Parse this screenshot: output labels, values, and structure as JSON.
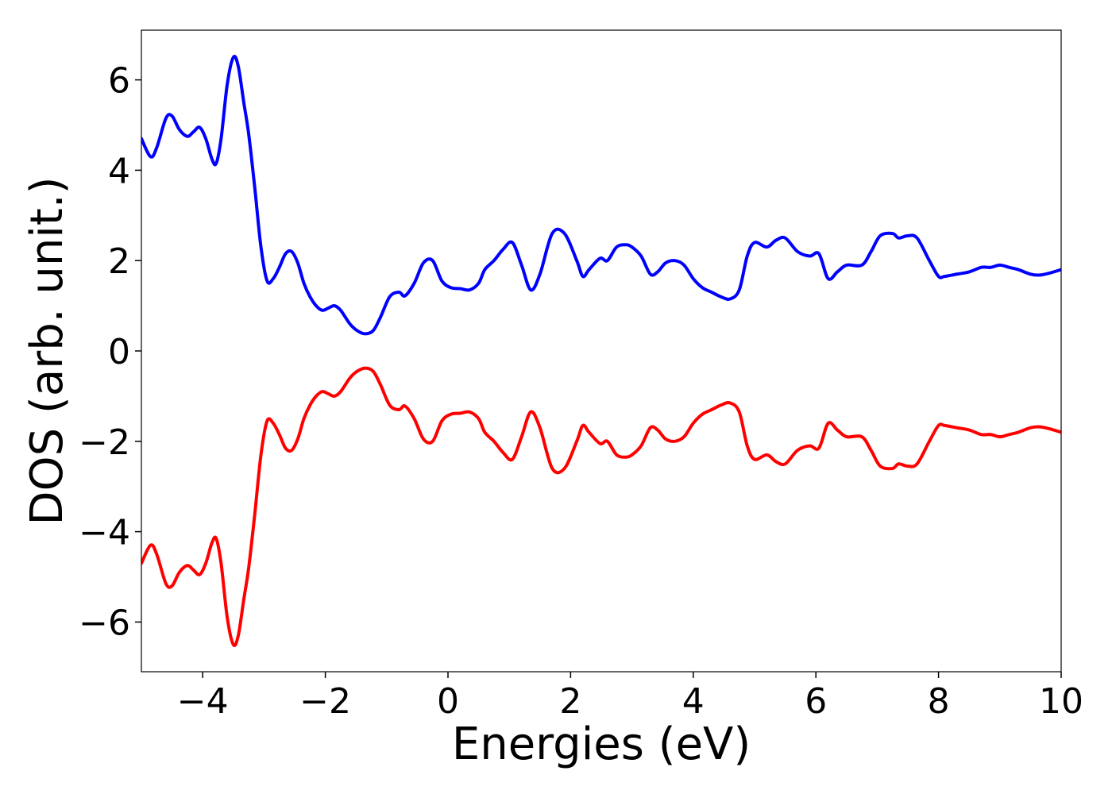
{
  "chart_data": {
    "type": "line",
    "title": "",
    "xlabel": "Energies (eV)",
    "ylabel": "DOS (arb. unit.)",
    "xlim": [
      -5,
      10
    ],
    "ylim": [
      -7.1,
      7.1
    ],
    "xticks": [
      -4,
      -2,
      0,
      2,
      4,
      6,
      8,
      10
    ],
    "xtick_labels": [
      "−4",
      "−2",
      "0",
      "2",
      "4",
      "6",
      "8",
      "10"
    ],
    "yticks": [
      -6,
      -4,
      -2,
      0,
      2,
      4,
      6
    ],
    "ytick_labels": [
      "−6",
      "−4",
      "−2",
      "0",
      "2",
      "4",
      "6"
    ],
    "grid": false,
    "series": [
      {
        "color": "#0000ff",
        "x": [
          -5.0,
          -4.85,
          -4.75,
          -4.6,
          -4.5,
          -4.38,
          -4.25,
          -4.15,
          -4.05,
          -3.95,
          -3.85,
          -3.78,
          -3.7,
          -3.6,
          -3.5,
          -3.42,
          -3.33,
          -3.25,
          -3.15,
          -3.05,
          -2.95,
          -2.85,
          -2.75,
          -2.65,
          -2.55,
          -2.45,
          -2.35,
          -2.25,
          -2.15,
          -2.05,
          -1.95,
          -1.85,
          -1.75,
          -1.6,
          -1.48,
          -1.35,
          -1.22,
          -1.1,
          -0.95,
          -0.8,
          -0.7,
          -0.55,
          -0.4,
          -0.25,
          -0.1,
          0.05,
          0.2,
          0.35,
          0.5,
          0.6,
          0.75,
          0.9,
          1.05,
          1.2,
          1.35,
          1.5,
          1.7,
          1.9,
          2.1,
          2.2,
          2.3,
          2.48,
          2.6,
          2.75,
          2.9,
          3.0,
          3.15,
          3.3,
          3.42,
          3.55,
          3.7,
          3.85,
          4.0,
          4.15,
          4.3,
          4.45,
          4.6,
          4.75,
          4.88,
          5.0,
          5.2,
          5.35,
          5.5,
          5.7,
          5.9,
          6.05,
          6.2,
          6.35,
          6.5,
          6.75,
          6.9,
          7.05,
          7.25,
          7.35,
          7.5,
          7.65,
          7.85,
          8.0,
          8.1,
          8.3,
          8.5,
          8.7,
          8.85,
          9.0,
          9.15,
          9.3,
          9.5,
          9.65,
          9.8,
          10.0
        ],
        "y": [
          4.7,
          4.3,
          4.5,
          5.15,
          5.2,
          4.9,
          4.75,
          4.85,
          4.95,
          4.7,
          4.25,
          4.15,
          4.7,
          5.9,
          6.5,
          6.3,
          5.5,
          4.8,
          3.6,
          2.3,
          1.55,
          1.6,
          1.85,
          2.15,
          2.2,
          1.95,
          1.5,
          1.2,
          1.0,
          0.9,
          0.95,
          1.0,
          0.9,
          0.6,
          0.45,
          0.38,
          0.45,
          0.75,
          1.2,
          1.3,
          1.22,
          1.5,
          1.95,
          2.0,
          1.55,
          1.4,
          1.38,
          1.35,
          1.5,
          1.8,
          2.0,
          2.25,
          2.4,
          1.9,
          1.35,
          1.7,
          2.6,
          2.6,
          2.0,
          1.65,
          1.8,
          2.05,
          2.0,
          2.3,
          2.35,
          2.3,
          2.1,
          1.7,
          1.75,
          1.95,
          2.0,
          1.9,
          1.6,
          1.4,
          1.3,
          1.2,
          1.15,
          1.35,
          2.1,
          2.4,
          2.3,
          2.45,
          2.5,
          2.2,
          2.1,
          2.15,
          1.6,
          1.75,
          1.9,
          1.9,
          2.2,
          2.55,
          2.6,
          2.5,
          2.55,
          2.5,
          2.0,
          1.65,
          1.65,
          1.7,
          1.75,
          1.85,
          1.85,
          1.9,
          1.85,
          1.8,
          1.7,
          1.68,
          1.72,
          1.8
        ]
      },
      {
        "color": "#ff0000",
        "x": [
          -5.0,
          -4.85,
          -4.75,
          -4.6,
          -4.5,
          -4.38,
          -4.25,
          -4.15,
          -4.05,
          -3.95,
          -3.85,
          -3.78,
          -3.7,
          -3.6,
          -3.5,
          -3.42,
          -3.33,
          -3.25,
          -3.15,
          -3.05,
          -2.95,
          -2.85,
          -2.75,
          -2.65,
          -2.55,
          -2.45,
          -2.35,
          -2.25,
          -2.15,
          -2.05,
          -1.95,
          -1.85,
          -1.75,
          -1.6,
          -1.48,
          -1.35,
          -1.22,
          -1.1,
          -0.95,
          -0.8,
          -0.7,
          -0.55,
          -0.4,
          -0.25,
          -0.1,
          0.05,
          0.2,
          0.35,
          0.5,
          0.6,
          0.75,
          0.9,
          1.05,
          1.2,
          1.35,
          1.5,
          1.7,
          1.9,
          2.1,
          2.2,
          2.3,
          2.48,
          2.6,
          2.75,
          2.9,
          3.0,
          3.15,
          3.3,
          3.42,
          3.55,
          3.7,
          3.85,
          4.0,
          4.15,
          4.3,
          4.45,
          4.6,
          4.75,
          4.88,
          5.0,
          5.2,
          5.35,
          5.5,
          5.7,
          5.9,
          6.05,
          6.2,
          6.35,
          6.5,
          6.75,
          6.9,
          7.05,
          7.25,
          7.35,
          7.5,
          7.65,
          7.85,
          8.0,
          8.1,
          8.3,
          8.5,
          8.7,
          8.85,
          9.0,
          9.15,
          9.3,
          9.5,
          9.65,
          9.8,
          10.0
        ],
        "y": [
          -4.7,
          -4.3,
          -4.5,
          -5.15,
          -5.2,
          -4.9,
          -4.75,
          -4.85,
          -4.95,
          -4.7,
          -4.25,
          -4.15,
          -4.7,
          -5.9,
          -6.5,
          -6.3,
          -5.5,
          -4.8,
          -3.6,
          -2.3,
          -1.55,
          -1.6,
          -1.85,
          -2.15,
          -2.2,
          -1.95,
          -1.5,
          -1.2,
          -1.0,
          -0.9,
          -0.95,
          -1.0,
          -0.9,
          -0.6,
          -0.45,
          -0.38,
          -0.45,
          -0.75,
          -1.2,
          -1.3,
          -1.22,
          -1.5,
          -1.95,
          -2.0,
          -1.55,
          -1.4,
          -1.38,
          -1.35,
          -1.5,
          -1.8,
          -2.0,
          -2.25,
          -2.4,
          -1.9,
          -1.35,
          -1.7,
          -2.6,
          -2.6,
          -2.0,
          -1.65,
          -1.8,
          -2.05,
          -2.0,
          -2.3,
          -2.35,
          -2.3,
          -2.1,
          -1.7,
          -1.75,
          -1.95,
          -2.0,
          -1.9,
          -1.6,
          -1.4,
          -1.3,
          -1.2,
          -1.15,
          -1.35,
          -2.1,
          -2.4,
          -2.3,
          -2.45,
          -2.5,
          -2.2,
          -2.1,
          -2.15,
          -1.6,
          -1.75,
          -1.9,
          -1.9,
          -2.2,
          -2.55,
          -2.6,
          -2.5,
          -2.55,
          -2.5,
          -2.0,
          -1.65,
          -1.65,
          -1.7,
          -1.75,
          -1.85,
          -1.85,
          -1.9,
          -1.85,
          -1.8,
          -1.7,
          -1.68,
          -1.72,
          -1.8
        ]
      }
    ]
  }
}
